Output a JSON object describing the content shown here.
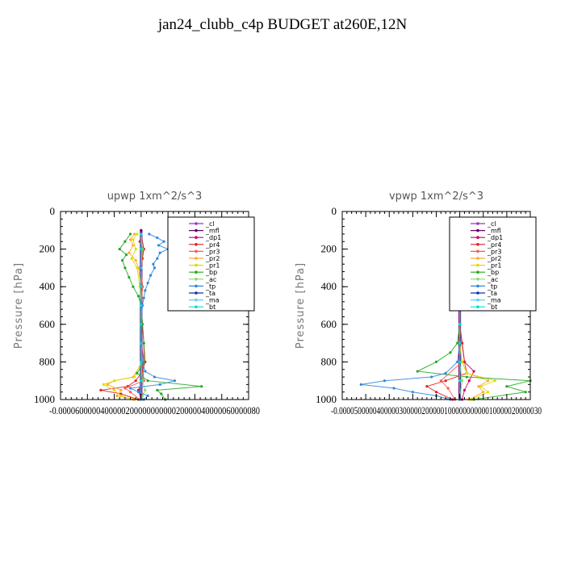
{
  "title": "jan24_clubb_c4p  BUDGET at260E,12N",
  "chart_data": [
    {
      "type": "line",
      "title": "upwp   1xm^2/s^3",
      "ylabel": "Pressure [hPa]",
      "ylim": [
        1000,
        0
      ],
      "yticks": [
        "0",
        "200",
        "400",
        "600",
        "800",
        "1000"
      ],
      "xlim": [
        -6e-05,
        8e-05
      ],
      "xtick_text": "-0.000060000040000020000000000020000040000060000080",
      "legend_position": "top-right",
      "series": [
        {
          "name": "_cl",
          "color": "#9933cc",
          "y": [
            100,
            200,
            300,
            400,
            500,
            600,
            700,
            800,
            900,
            1000
          ],
          "x": [
            0,
            0,
            0,
            0,
            0,
            0,
            0,
            0,
            0,
            0
          ]
        },
        {
          "name": "_mfl",
          "color": "#660066",
          "y": [
            100,
            200,
            300,
            400,
            500,
            600,
            700,
            800,
            900,
            1000
          ],
          "x": [
            0,
            0,
            0,
            0,
            0,
            0,
            0,
            0,
            0,
            0
          ]
        },
        {
          "name": "_dp1",
          "color": "#cc0066",
          "y": [
            120,
            200,
            300,
            400,
            500,
            600,
            700,
            800,
            900,
            950,
            1000
          ],
          "x": [
            0,
            2e-06,
            -1e-06,
            1e-06,
            0,
            1e-06,
            0,
            2e-06,
            1e-06,
            -2e-06,
            0
          ]
        },
        {
          "name": "_pr4",
          "color": "#dd2222",
          "y": [
            120,
            160,
            200,
            250,
            300,
            400,
            500,
            600,
            700,
            800,
            850,
            900,
            930,
            950,
            970,
            1000
          ],
          "x": [
            0,
            -1e-06,
            2e-06,
            1e-06,
            0,
            1e-06,
            0,
            1e-06,
            2e-06,
            3e-06,
            1e-06,
            -4e-06,
            -1e-05,
            -3e-05,
            -1.5e-05,
            -2e-06
          ]
        },
        {
          "name": "_pr3",
          "color": "#ff5555",
          "y": [
            120,
            200,
            300,
            400,
            500,
            600,
            700,
            800,
            900,
            940,
            960,
            1000
          ],
          "x": [
            0,
            1e-06,
            0,
            1e-06,
            0,
            0,
            0,
            1e-06,
            2e-06,
            -1.2e-05,
            -8e-06,
            -1e-06
          ]
        },
        {
          "name": "_pr2",
          "color": "#ffaa33",
          "y": [
            120,
            150,
            180,
            220,
            260,
            300,
            400,
            500,
            600,
            700,
            800,
            880,
            900,
            920,
            950,
            980,
            1000
          ],
          "x": [
            -5e-06,
            -8e-06,
            -6e-06,
            -9e-06,
            -4e-06,
            -2e-06,
            0,
            0,
            0,
            0,
            1e-06,
            -6e-06,
            -2e-05,
            -2.5e-05,
            -1.5e-05,
            -1.8e-05,
            -5e-06
          ]
        },
        {
          "name": "_pr1",
          "color": "#dddd00",
          "y": [
            120,
            150,
            200,
            250,
            300,
            400,
            500,
            600,
            700,
            800,
            880,
            900,
            920,
            950,
            980,
            1000
          ],
          "x": [
            -3e-06,
            -6e-06,
            -4e-06,
            -7e-06,
            -3e-06,
            -1e-06,
            0,
            0,
            0,
            0,
            -5e-06,
            -2e-05,
            -2.8e-05,
            -2e-05,
            -1.5e-05,
            -6e-06
          ]
        },
        {
          "name": "_bp",
          "color": "#22aa22",
          "y": [
            120,
            160,
            200,
            230,
            260,
            300,
            350,
            400,
            450,
            500,
            600,
            700,
            800,
            860,
            900,
            930,
            950,
            970,
            1000
          ],
          "x": [
            -8e-06,
            -1.2e-05,
            -1.6e-05,
            -1.1e-05,
            -1.4e-05,
            -1.2e-05,
            -9e-06,
            -6e-06,
            -2e-06,
            0,
            1e-06,
            2e-06,
            2e-06,
            -3e-06,
            5e-06,
            4.5e-05,
            1.2e-05,
            1.5e-05,
            1.8e-05
          ]
        },
        {
          "name": "_ac",
          "color": "#88dd66",
          "y": [
            120,
            200,
            300,
            400,
            500,
            600,
            700,
            800,
            900,
            950,
            980,
            1000
          ],
          "x": [
            0,
            1e-06,
            0,
            0,
            0,
            0,
            0,
            0,
            1e-06,
            3e-06,
            1e-06,
            0
          ]
        },
        {
          "name": "_tp",
          "color": "#3388dd",
          "y": [
            120,
            140,
            160,
            180,
            200,
            220,
            250,
            280,
            300,
            340,
            380,
            420,
            460,
            500,
            600,
            700,
            800,
            850,
            880,
            900,
            920,
            940,
            960,
            980,
            1000
          ],
          "x": [
            6e-06,
            1.2e-05,
            1.7e-05,
            1.3e-05,
            2e-05,
            1.4e-05,
            1.2e-05,
            9e-06,
            1e-05,
            7e-06,
            5e-06,
            3e-06,
            2e-06,
            1e-06,
            0,
            0,
            1e-06,
            3e-06,
            1e-05,
            2.5e-05,
            1.4e-05,
            -8e-06,
            -2e-06,
            5e-06,
            2e-06
          ]
        },
        {
          "name": "_ta",
          "color": "#1133aa",
          "y": [
            120,
            200,
            300,
            400,
            500,
            600,
            700,
            800,
            900,
            1000
          ],
          "x": [
            0,
            0,
            0,
            0,
            0,
            0,
            0,
            0,
            0,
            0
          ]
        },
        {
          "name": "_ma",
          "color": "#66ccff",
          "y": [
            120,
            200,
            300,
            400,
            500,
            600,
            700,
            800,
            900,
            1000
          ],
          "x": [
            0,
            0,
            0,
            0,
            0,
            0,
            0,
            0,
            0,
            0
          ]
        },
        {
          "name": "_bt",
          "color": "#00dddd",
          "y": [
            120,
            200,
            300,
            400,
            500,
            600,
            700,
            800,
            900,
            1000
          ],
          "x": [
            0,
            0,
            0,
            0,
            0,
            0,
            0,
            0,
            0,
            0
          ]
        }
      ]
    },
    {
      "type": "line",
      "title": "vpwp   1xm^2/s^3",
      "ylabel": "Pressure [hPa]",
      "ylim": [
        1000,
        0
      ],
      "yticks": [
        "0",
        "200",
        "400",
        "600",
        "800",
        "1000"
      ],
      "xlim": [
        -5e-05,
        3e-05
      ],
      "xtick_text": "-0.000050000040000030000020000010000000000010000020000030",
      "legend_position": "top-right",
      "series": [
        {
          "name": "_cl",
          "color": "#9933cc",
          "y": [
            100,
            200,
            300,
            400,
            500,
            600,
            700,
            800,
            900,
            1000
          ],
          "x": [
            0,
            0,
            0,
            0,
            0,
            0,
            0,
            0,
            0,
            0
          ]
        },
        {
          "name": "_mfl",
          "color": "#660066",
          "y": [
            100,
            200,
            300,
            400,
            500,
            600,
            700,
            800,
            900,
            1000
          ],
          "x": [
            0,
            0,
            0,
            0,
            0,
            0,
            0,
            0,
            0,
            0
          ]
        },
        {
          "name": "_dp1",
          "color": "#cc0066",
          "y": [
            120,
            200,
            300,
            400,
            500,
            600,
            700,
            800,
            850,
            900,
            950,
            1000
          ],
          "x": [
            0,
            1e-06,
            0,
            1e-06,
            0,
            0,
            1e-06,
            2e-06,
            6e-06,
            4e-06,
            2e-06,
            1e-06
          ]
        },
        {
          "name": "_pr4",
          "color": "#dd2222",
          "y": [
            120,
            200,
            300,
            400,
            500,
            600,
            700,
            800,
            860,
            900,
            930,
            960,
            1000
          ],
          "x": [
            0,
            1e-06,
            0,
            1e-06,
            0,
            0,
            1e-06,
            2e-06,
            3e-06,
            -6e-06,
            -1.4e-05,
            -1e-05,
            -3e-06
          ]
        },
        {
          "name": "_pr3",
          "color": "#ff5555",
          "y": [
            120,
            200,
            300,
            400,
            500,
            600,
            700,
            800,
            900,
            940,
            1000
          ],
          "x": [
            0,
            1e-06,
            0,
            0,
            0,
            0,
            0,
            1e-06,
            -8e-06,
            -5e-06,
            -2e-06
          ]
        },
        {
          "name": "_pr2",
          "color": "#ffaa33",
          "y": [
            120,
            150,
            200,
            250,
            300,
            400,
            500,
            600,
            700,
            800,
            860,
            900,
            930,
            960,
            1000
          ],
          "x": [
            2e-06,
            4e-06,
            -2e-06,
            1e-06,
            0,
            0,
            0,
            0,
            0,
            1e-06,
            3e-06,
            1.2e-05,
            8e-06,
            1e-05,
            4e-06
          ]
        },
        {
          "name": "_pr1",
          "color": "#dddd00",
          "y": [
            120,
            150,
            200,
            250,
            300,
            400,
            500,
            600,
            700,
            800,
            860,
            900,
            930,
            960,
            1000
          ],
          "x": [
            1e-06,
            3e-06,
            -3e-06,
            1e-06,
            0,
            0,
            0,
            0,
            0,
            1e-06,
            3e-06,
            1.5e-05,
            9e-06,
            1.2e-05,
            5e-06
          ]
        },
        {
          "name": "_bp",
          "color": "#22aa22",
          "y": [
            120,
            160,
            200,
            250,
            300,
            350,
            400,
            450,
            500,
            600,
            700,
            750,
            800,
            850,
            880,
            900,
            930,
            960,
            1000
          ],
          "x": [
            2e-06,
            4e-06,
            -1e-06,
            3e-06,
            -2e-06,
            1e-06,
            -1e-06,
            -2e-06,
            0,
            0,
            -1e-06,
            -4e-06,
            -1e-05,
            -1.8e-05,
            3e-06,
            3e-05,
            2e-05,
            2.8e-05,
            6e-06
          ]
        },
        {
          "name": "_ac",
          "color": "#88dd66",
          "y": [
            120,
            200,
            300,
            400,
            500,
            600,
            700,
            800,
            900,
            1000
          ],
          "x": [
            0,
            1e-06,
            0,
            0,
            0,
            0,
            0,
            0,
            1e-06,
            0
          ]
        },
        {
          "name": "_tp",
          "color": "#3388dd",
          "y": [
            120,
            140,
            160,
            200,
            250,
            300,
            400,
            500,
            600,
            700,
            800,
            860,
            880,
            900,
            920,
            940,
            960,
            980,
            1000
          ],
          "x": [
            -3e-06,
            -1e-06,
            -4e-06,
            2e-06,
            -2e-06,
            1e-06,
            -1e-06,
            0,
            0,
            0,
            -1e-06,
            -6e-06,
            -1.2e-05,
            -3.2e-05,
            -4.2e-05,
            -2.8e-05,
            -2e-05,
            -1e-05,
            -4e-06
          ]
        },
        {
          "name": "_ta",
          "color": "#1133aa",
          "y": [
            120,
            200,
            300,
            400,
            500,
            600,
            700,
            800,
            900,
            1000
          ],
          "x": [
            0,
            0,
            0,
            0,
            0,
            0,
            0,
            0,
            0,
            0
          ]
        },
        {
          "name": "_ma",
          "color": "#66ccff",
          "y": [
            120,
            200,
            300,
            400,
            500,
            600,
            700,
            800,
            900,
            1000
          ],
          "x": [
            0,
            0,
            0,
            0,
            0,
            0,
            0,
            0,
            0,
            0
          ]
        },
        {
          "name": "_bt",
          "color": "#00dddd",
          "y": [
            120,
            200,
            300,
            400,
            500,
            600,
            700,
            800,
            900,
            1000
          ],
          "x": [
            0,
            0,
            0,
            0,
            0,
            0,
            0,
            0,
            0,
            0
          ]
        }
      ]
    }
  ]
}
